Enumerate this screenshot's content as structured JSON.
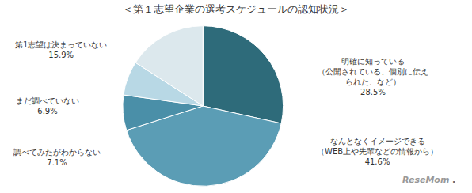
{
  "chart_data": {
    "type": "pie",
    "title": "＜第１志望企業の選考スケジュールの認知状況＞",
    "categories": [
      "明確に知っている\n（公開されている、個別に伝え\nられた、など）",
      "なんとなくイメージできる\n（WEB上や先輩などの情報から）",
      "調べてみたがわからない",
      "まだ調べていない",
      "第1志望は決まっていない"
    ],
    "values": [
      28.5,
      41.6,
      7.1,
      6.9,
      15.9
    ],
    "value_labels": [
      "28.5%",
      "41.6%",
      "7.1%",
      "6.9%",
      "15.9%"
    ],
    "colors": [
      "#2e6b7a",
      "#5b9db5",
      "#4a8fa8",
      "#b8d8e5",
      "#dce8ed"
    ],
    "annotations": [
      "ReseMom",
      "."
    ]
  }
}
